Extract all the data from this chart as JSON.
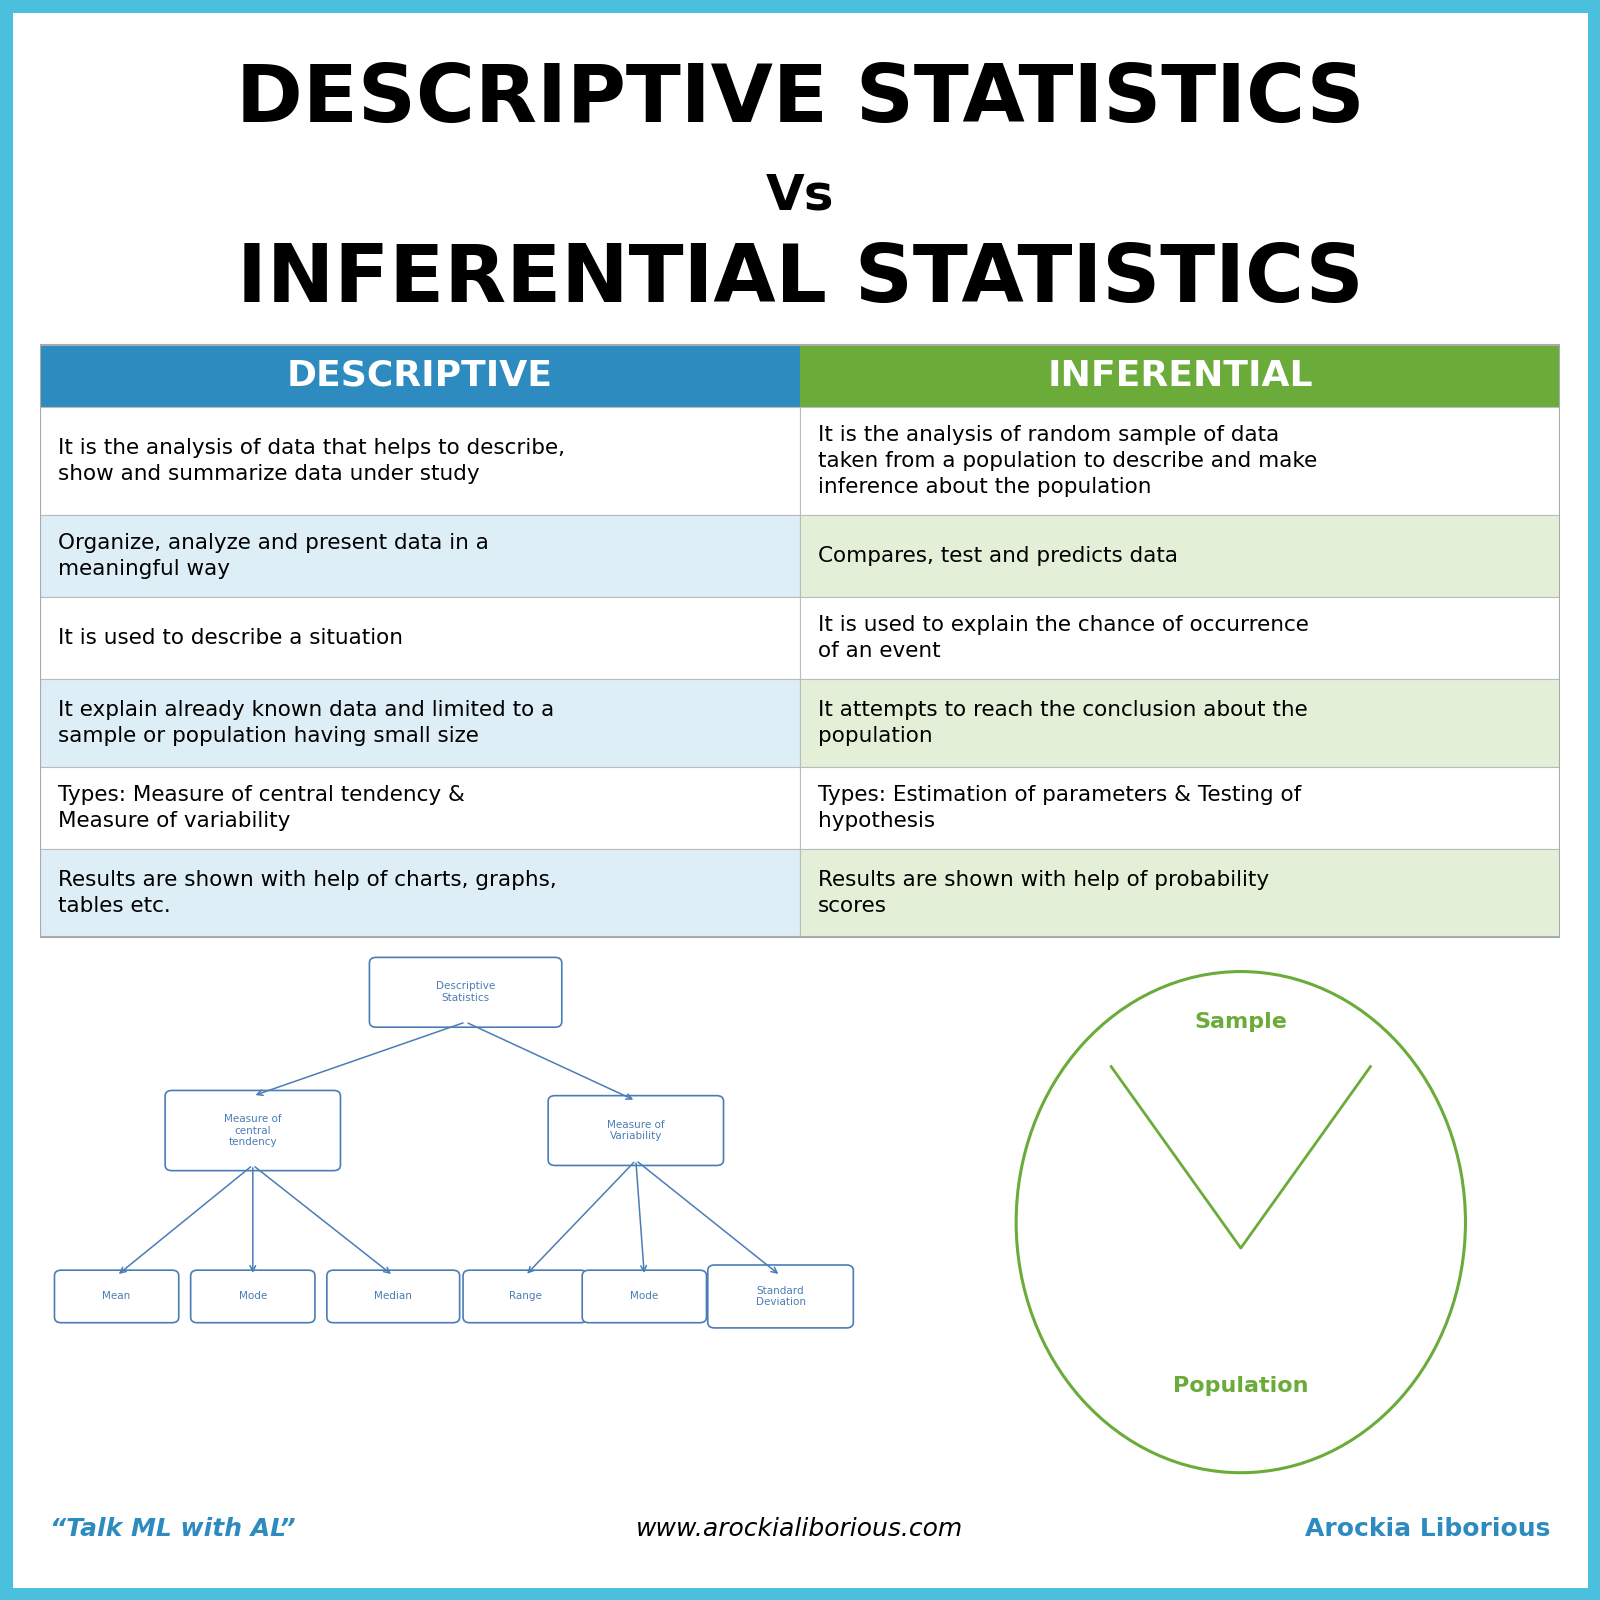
{
  "title_line1": "DESCRIPTIVE STATISTICS",
  "title_vs": "Vs",
  "title_line2": "INFERENTIAL STATISTICS",
  "col1_header": "DESCRIPTIVE",
  "col2_header": "INFERENTIAL",
  "col1_color": "#2E8BC0",
  "col2_color": "#6AAB3A",
  "row_bg_white": "#FFFFFF",
  "row_bg_blue": "#DDEEF7",
  "row_bg_green": "#E4EFD8",
  "rows": [
    {
      "desc": "It is the analysis of data that helps to describe,\nshow and summarize data under study",
      "inf": "It is the analysis of random sample of data\ntaken from a population to describe and make\ninference about the population"
    },
    {
      "desc": "Organize, analyze and present data in a\nmeaningful way",
      "inf": "Compares, test and predicts data"
    },
    {
      "desc": "It is used to describe a situation",
      "inf": "It is used to explain the chance of occurrence\nof an event"
    },
    {
      "desc": "It explain already known data and limited to a\nsample or population having small size",
      "inf": "It attempts to reach the conclusion about the\npopulation"
    },
    {
      "desc": "Types: Measure of central tendency &\nMeasure of variability",
      "inf": "Types: Estimation of parameters & Testing of\nhypothesis"
    },
    {
      "desc": "Results are shown with help of charts, graphs,\ntables etc.",
      "inf": "Results are shown with help of probability\nscores"
    }
  ],
  "footer_left": "“Talk ML with AL”",
  "footer_center": "www.arockialiborious.com",
  "footer_right": "Arockia Liborious",
  "tree_color": "#4A7DB5",
  "pie_color": "#6AAB3A",
  "background_color": "#FFFFFF",
  "outer_border_color": "#4BBFDE"
}
